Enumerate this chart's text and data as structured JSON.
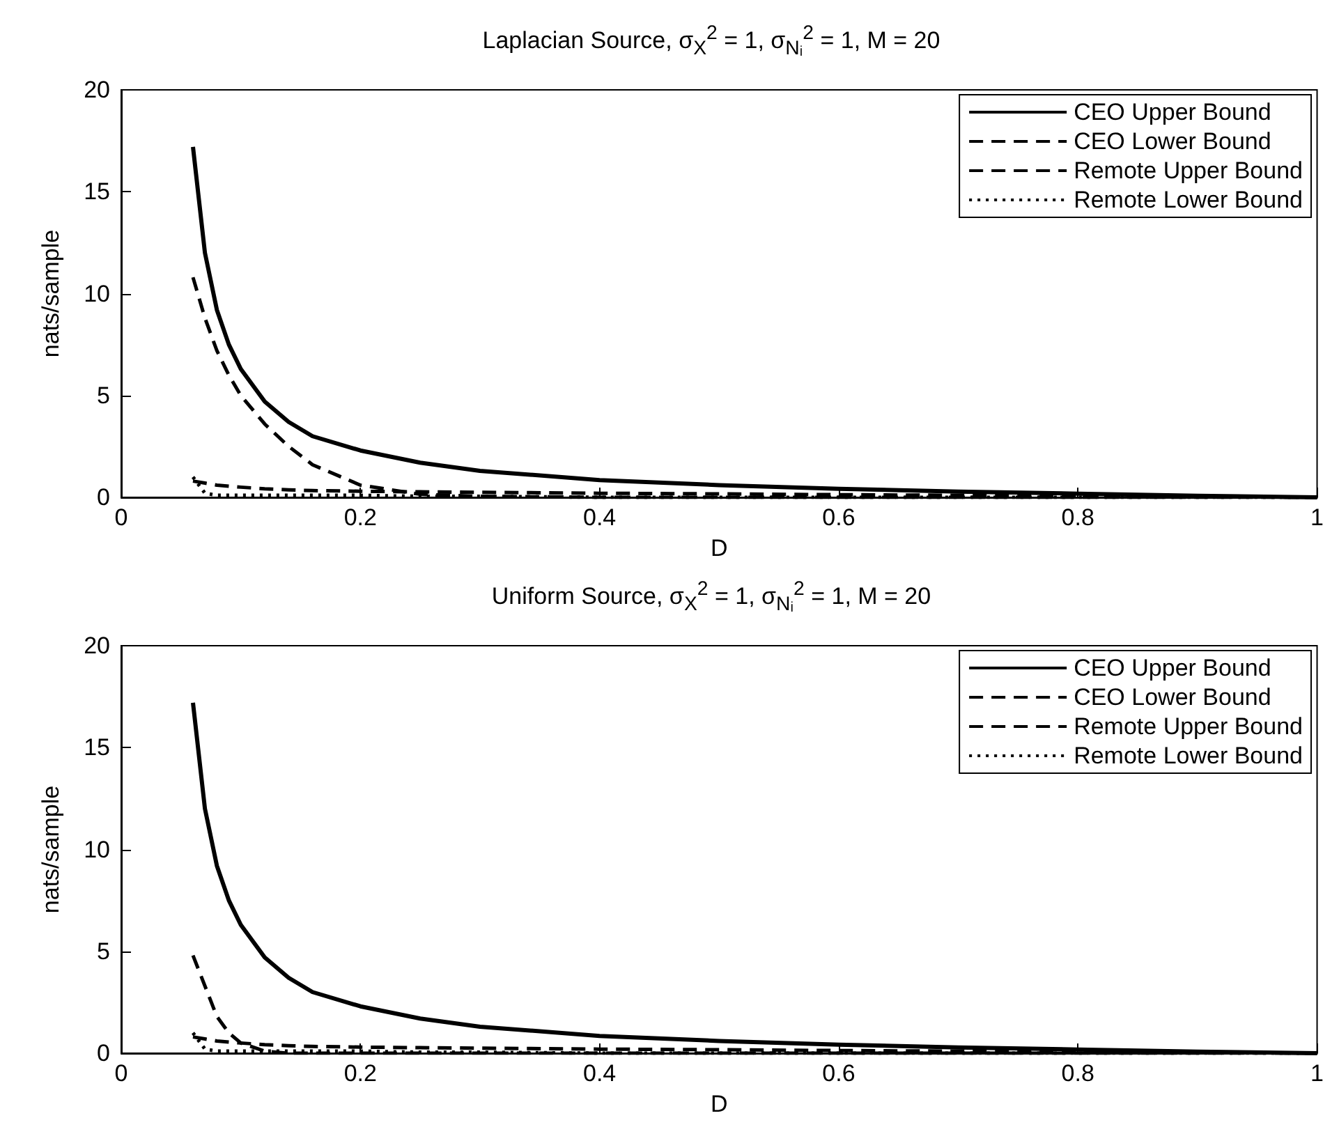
{
  "chart_data": [
    {
      "type": "line",
      "title": "Laplacian Source, σ$_{X}$$^{2}$ = 1,  σ$_{Nᵢ}$$^{2}$ = 1, M = 20",
      "xlabel": "D",
      "ylabel": "nats/sample",
      "x": [
        0.06,
        0.07,
        0.08,
        0.09,
        0.1,
        0.12,
        0.14,
        0.16,
        0.2,
        0.25,
        0.3,
        0.4,
        0.5,
        0.6,
        0.7,
        0.8,
        0.9,
        1
      ],
      "xlim": [
        0,
        1
      ],
      "xticks": [
        0,
        0.2,
        0.4,
        0.6,
        0.8,
        1
      ],
      "ylim": [
        0,
        20
      ],
      "yticks": [
        0,
        5,
        10,
        15,
        20
      ],
      "legend": "top right",
      "grid": false,
      "marker": "none",
      "series": [
        {
          "name": "CEO Upper Bound",
          "color": "#000000",
          "line_style": "solid",
          "values": [
            17.2,
            12,
            9.2,
            7.5,
            6.3,
            4.7,
            3.7,
            3,
            2.3,
            1.7,
            1.3,
            0.85,
            0.6,
            0.42,
            0.28,
            0.18,
            0.08,
            0
          ]
        },
        {
          "name": "CEO Lower Bound",
          "color": "#000000",
          "line_style": "dashed",
          "values": [
            10.8,
            8.8,
            7.2,
            6,
            5,
            3.6,
            2.5,
            1.6,
            0.6,
            0.15,
            0.05,
            0,
            0,
            0,
            0,
            0,
            0,
            0
          ]
        },
        {
          "name": "Remote Upper Bound",
          "color": "#000000",
          "line_style": "dashed",
          "values": [
            0.8,
            0.7,
            0.6,
            0.55,
            0.5,
            0.42,
            0.37,
            0.33,
            0.3,
            0.27,
            0.25,
            0.2,
            0.17,
            0.13,
            0.1,
            0.07,
            0.04,
            0
          ]
        },
        {
          "name": "Remote Lower Bound",
          "color": "#000000",
          "line_style": "dotted",
          "values": [
            1,
            0.2,
            0.1,
            0.1,
            0.1,
            0.1,
            0.1,
            0.1,
            0.1,
            0.05,
            0.05,
            0,
            0,
            0,
            0,
            0,
            0,
            0
          ]
        }
      ]
    },
    {
      "type": "line",
      "title": "Uniform Source, σ$_{X}$$^{2}$ = 1,  σ$_{Nᵢ}$$^{2}$ = 1, M = 20",
      "xlabel": "D",
      "ylabel": "nats/sample",
      "x": [
        0.06,
        0.07,
        0.08,
        0.09,
        0.1,
        0.12,
        0.14,
        0.16,
        0.2,
        0.25,
        0.3,
        0.4,
        0.5,
        0.6,
        0.7,
        0.8,
        0.9,
        1
      ],
      "xlim": [
        0,
        1
      ],
      "xticks": [
        0,
        0.2,
        0.4,
        0.6,
        0.8,
        1
      ],
      "ylim": [
        0,
        20
      ],
      "yticks": [
        0,
        5,
        10,
        15,
        20
      ],
      "legend": "top right",
      "grid": false,
      "marker": "none",
      "series": [
        {
          "name": "CEO Upper Bound",
          "color": "#000000",
          "line_style": "solid",
          "values": [
            17.2,
            12,
            9.2,
            7.5,
            6.3,
            4.7,
            3.7,
            3,
            2.3,
            1.7,
            1.3,
            0.85,
            0.6,
            0.42,
            0.28,
            0.18,
            0.08,
            0
          ]
        },
        {
          "name": "CEO Lower Bound",
          "color": "#000000",
          "line_style": "dashed",
          "values": [
            4.8,
            3.3,
            1.8,
            1,
            0.5,
            0.1,
            0,
            0,
            0,
            0,
            0,
            0,
            0,
            0,
            0,
            0,
            0,
            0
          ]
        },
        {
          "name": "Remote Upper Bound",
          "color": "#000000",
          "line_style": "dashed",
          "values": [
            0.8,
            0.7,
            0.6,
            0.55,
            0.5,
            0.42,
            0.37,
            0.33,
            0.3,
            0.27,
            0.25,
            0.2,
            0.17,
            0.13,
            0.1,
            0.07,
            0.04,
            0
          ]
        },
        {
          "name": "Remote Lower Bound",
          "color": "#000000",
          "line_style": "dotted",
          "values": [
            1,
            0.2,
            0.1,
            0.1,
            0.1,
            0.1,
            0.1,
            0.1,
            0.1,
            0.05,
            0.05,
            0,
            0,
            0,
            0,
            0,
            0,
            0
          ]
        }
      ]
    }
  ]
}
